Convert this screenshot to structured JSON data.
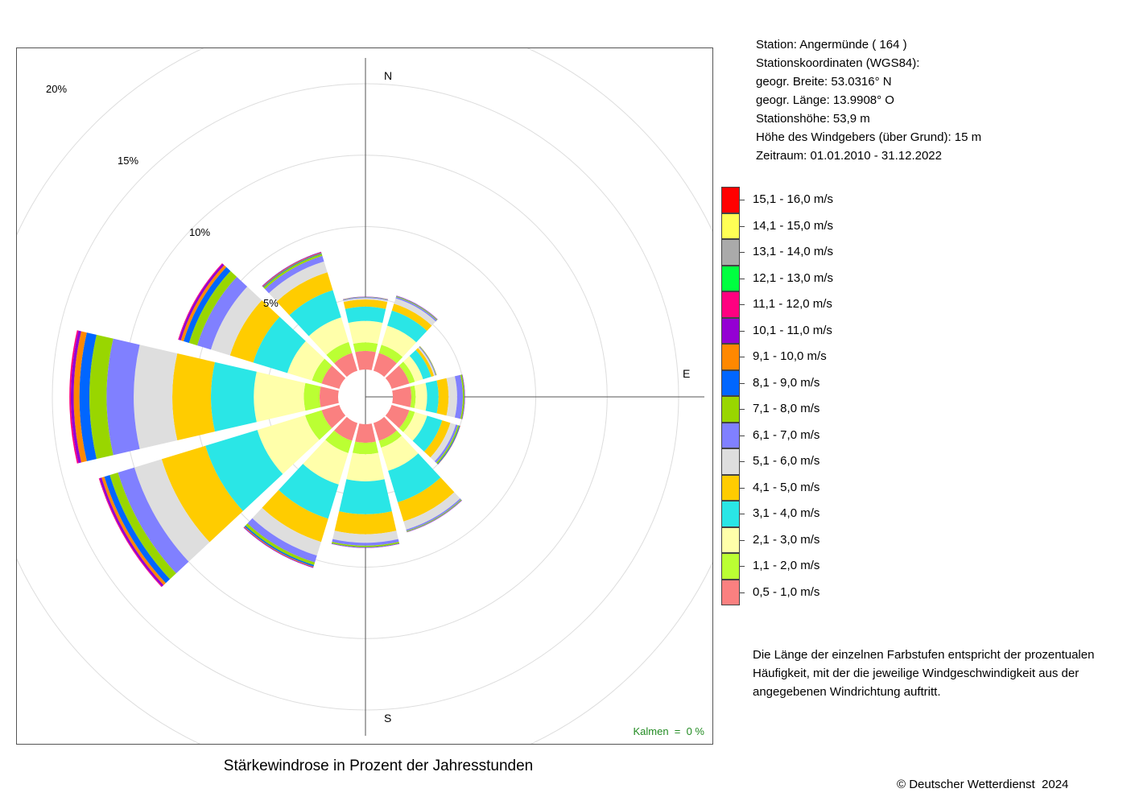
{
  "station": {
    "line1": "Station:  Angermünde  ( 164 )",
    "line2": "Stationskoordinaten (WGS84):",
    "line3": "geogr. Breite: 53.0316° N",
    "line4": "geogr. Länge: 13.9908° O",
    "line5": "Stationshöhe: 53,9 m",
    "line6": "Höhe des Windgebers (über Grund): 15 m",
    "line7": "Zeitraum: 01.01.2010 - 31.12.2022"
  },
  "compass": {
    "n": "N",
    "e": "E",
    "s": "S"
  },
  "ring_labels": [
    "5%",
    "10%",
    "15%",
    "20%"
  ],
  "calm": {
    "label": "Kalmen  =  0 %"
  },
  "note": {
    "line1": "Die Länge der einzelnen Farbstufen entspricht der prozentualen",
    "line2": "Häufigkeit, mit der die jeweilige Windgeschwindigkeit aus der",
    "line3": "angegebenen Windrichtung auftritt."
  },
  "caption": "Stärkewindrose in Prozent der Jahresstunden",
  "copyright": "© Deutscher Wetterdienst  2024",
  "chart_data": {
    "type": "wind-rose",
    "title": "Stärkewindrose in Prozent der Jahresstunden",
    "directions_deg": [
      0,
      30,
      60,
      90,
      120,
      150,
      180,
      210,
      240,
      270,
      300,
      330
    ],
    "radial_ticks_percent": [
      5,
      10,
      15,
      20
    ],
    "calm_percent": 0,
    "speed_classes": [
      {
        "label": "0,5 - 1,0 m/s",
        "color": "#fa8080"
      },
      {
        "label": "1,1 - 2,0 m/s",
        "color": "#bbff33"
      },
      {
        "label": "2,1 - 3,0 m/s",
        "color": "#ffffaa"
      },
      {
        "label": "3,1 - 4,0 m/s",
        "color": "#2ae6e6"
      },
      {
        "label": "4,1 - 5,0 m/s",
        "color": "#ffcc00"
      },
      {
        "label": "5,1 - 6,0 m/s",
        "color": "#dedede"
      },
      {
        "label": "6,1 - 7,0 m/s",
        "color": "#8080ff"
      },
      {
        "label": "7,1 - 8,0 m/s",
        "color": "#99d600"
      },
      {
        "label": "8,1 - 9,0 m/s",
        "color": "#0066ff"
      },
      {
        "label": "9,1 - 10,0 m/s",
        "color": "#ff8800"
      },
      {
        "label": "10,1 - 11,0 m/s",
        "color": "#9400d3"
      },
      {
        "label": "11,1 - 12,0 m/s",
        "color": "#ff0080"
      },
      {
        "label": "12,1 - 13,0 m/s",
        "color": "#00ff40"
      },
      {
        "label": "13,1 - 14,0 m/s",
        "color": "#aaaaaa"
      },
      {
        "label": "14,1 - 15,0 m/s",
        "color": "#ffff55"
      },
      {
        "label": "15,1 - 16,0 m/s",
        "color": "#ff0000"
      }
    ],
    "cumulative_percent_by_direction": [
      [
        1.3,
        1.9,
        3.4,
        4.4,
        4.9,
        5.0,
        5.05,
        5.07,
        5.08,
        5.09,
        5.1,
        5.1,
        5.1,
        5.1,
        5.1,
        5.1
      ],
      [
        1.3,
        1.9,
        3.3,
        4.4,
        4.9,
        5.3,
        5.4,
        5.45,
        5.47,
        5.48,
        5.5,
        5.5,
        5.5,
        5.5,
        5.5,
        5.5
      ],
      [
        1.3,
        1.7,
        2.3,
        2.9,
        3.1,
        3.2,
        3.25,
        3.28,
        3.29,
        3.3,
        3.3,
        3.3,
        3.3,
        3.3,
        3.3,
        3.3
      ],
      [
        1.3,
        1.6,
        2.4,
        3.2,
        3.9,
        4.5,
        4.9,
        5.0,
        5.02,
        5.03,
        5.05,
        5.05,
        5.05,
        5.05,
        5.05,
        5.05
      ],
      [
        1.3,
        1.7,
        2.6,
        3.7,
        4.3,
        4.7,
        4.85,
        4.95,
        5.0,
        5.02,
        5.03,
        5.03,
        5.03,
        5.03,
        5.03,
        5.03
      ],
      [
        1.3,
        1.8,
        3.5,
        5.8,
        7.2,
        7.8,
        7.9,
        7.95,
        7.97,
        7.98,
        8.0,
        8.0,
        8.0,
        8.0,
        8.0,
        8.0
      ],
      [
        1.3,
        2.1,
        4.0,
        6.3,
        7.7,
        8.3,
        8.5,
        8.6,
        8.62,
        8.63,
        8.65,
        8.65,
        8.65,
        8.65,
        8.65,
        8.65
      ],
      [
        1.3,
        2.2,
        4.5,
        7.0,
        8.7,
        9.7,
        10.2,
        10.4,
        10.5,
        10.55,
        10.6,
        10.6,
        10.6,
        10.6,
        10.6,
        10.6
      ],
      [
        1.3,
        2.5,
        6.0,
        9.8,
        13.0,
        15.0,
        16.2,
        16.8,
        17.2,
        17.4,
        17.55,
        17.6,
        17.6,
        17.6,
        17.6,
        17.6
      ],
      [
        1.3,
        2.4,
        5.9,
        8.9,
        11.6,
        14.3,
        16.2,
        17.4,
        18.1,
        18.5,
        18.7,
        18.8,
        18.8,
        18.8,
        18.8,
        18.8
      ],
      [
        1.3,
        2.0,
        3.8,
        6.3,
        8.0,
        9.4,
        10.4,
        11.0,
        11.4,
        11.6,
        11.75,
        11.8,
        11.8,
        11.8,
        11.8,
        11.8
      ],
      [
        1.3,
        2.1,
        3.9,
        5.9,
        7.2,
        8.0,
        8.4,
        8.55,
        8.6,
        8.65,
        8.7,
        8.7,
        8.7,
        8.7,
        8.7,
        8.7
      ]
    ]
  }
}
